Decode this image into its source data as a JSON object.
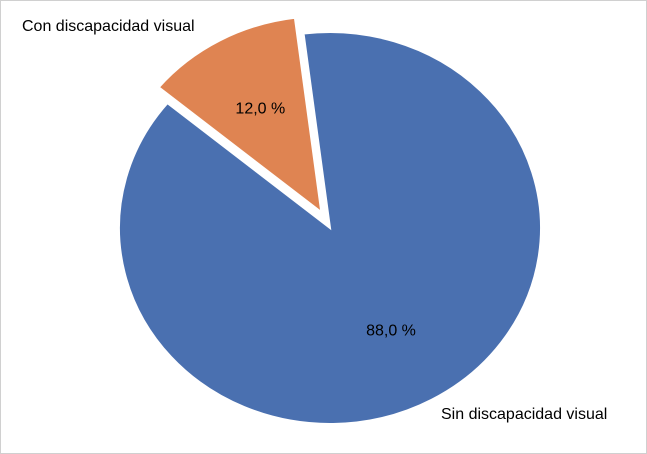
{
  "chart_data": {
    "type": "pie",
    "categories": [
      "Sin discapacidad visual",
      "Con discapacidad visual"
    ],
    "values": [
      88.0,
      12.0
    ],
    "value_labels": [
      "88,0 %",
      "12,0 %"
    ],
    "colors": [
      "#4a70b0",
      "#df8452"
    ]
  }
}
